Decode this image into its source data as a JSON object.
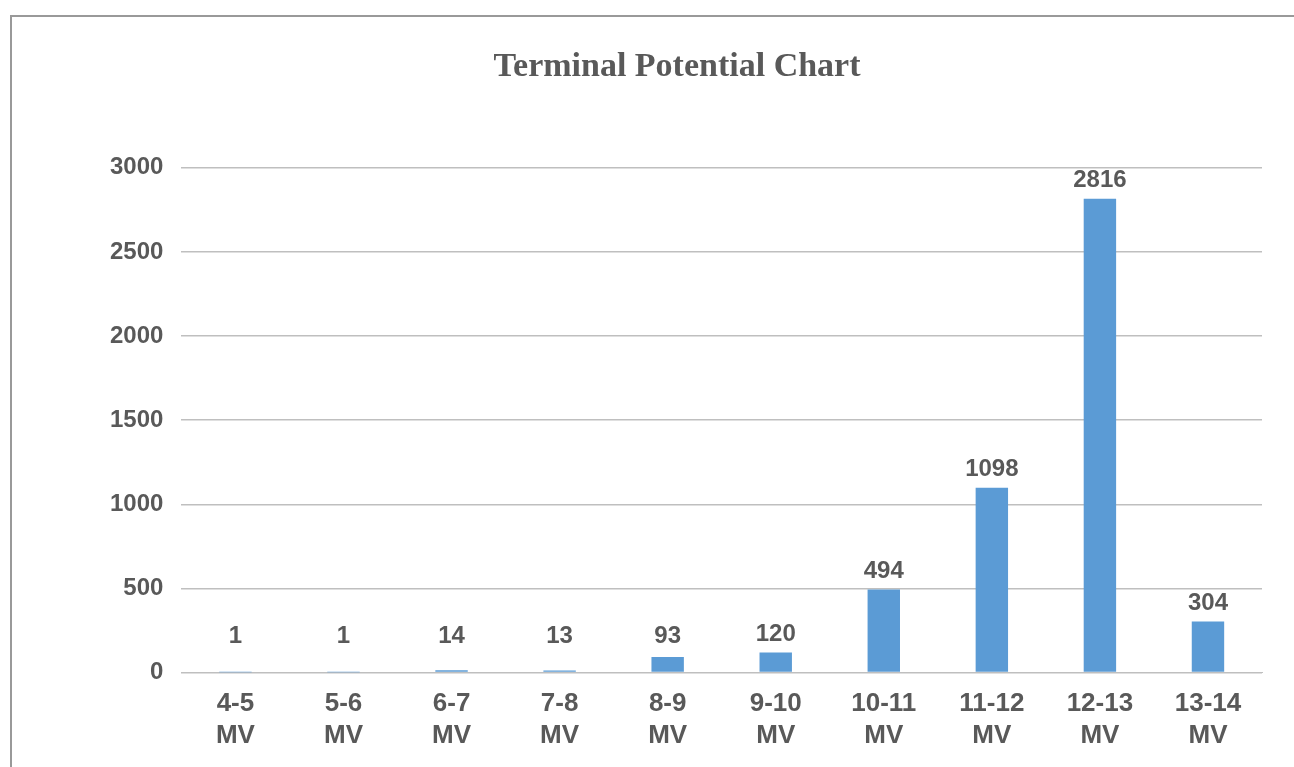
{
  "chart_data": {
    "type": "bar",
    "title": "Terminal Potential Chart",
    "categories": [
      "4-5 MV",
      "5-6 MV",
      "6-7 MV",
      "7-8 MV",
      "8-9 MV",
      "9-10 MV",
      "10-11 MV",
      "11-12 MV",
      "12-13 MV",
      "13-14 MV"
    ],
    "values": [
      1,
      1,
      14,
      13,
      93,
      120,
      494,
      1098,
      2816,
      304
    ],
    "color": "#5b9bd5",
    "ylim": [
      0,
      3000
    ],
    "yticks": [
      0,
      500,
      1000,
      1500,
      2000,
      2500,
      3000
    ],
    "grid": "y",
    "data_labels": true,
    "legend": false
  }
}
